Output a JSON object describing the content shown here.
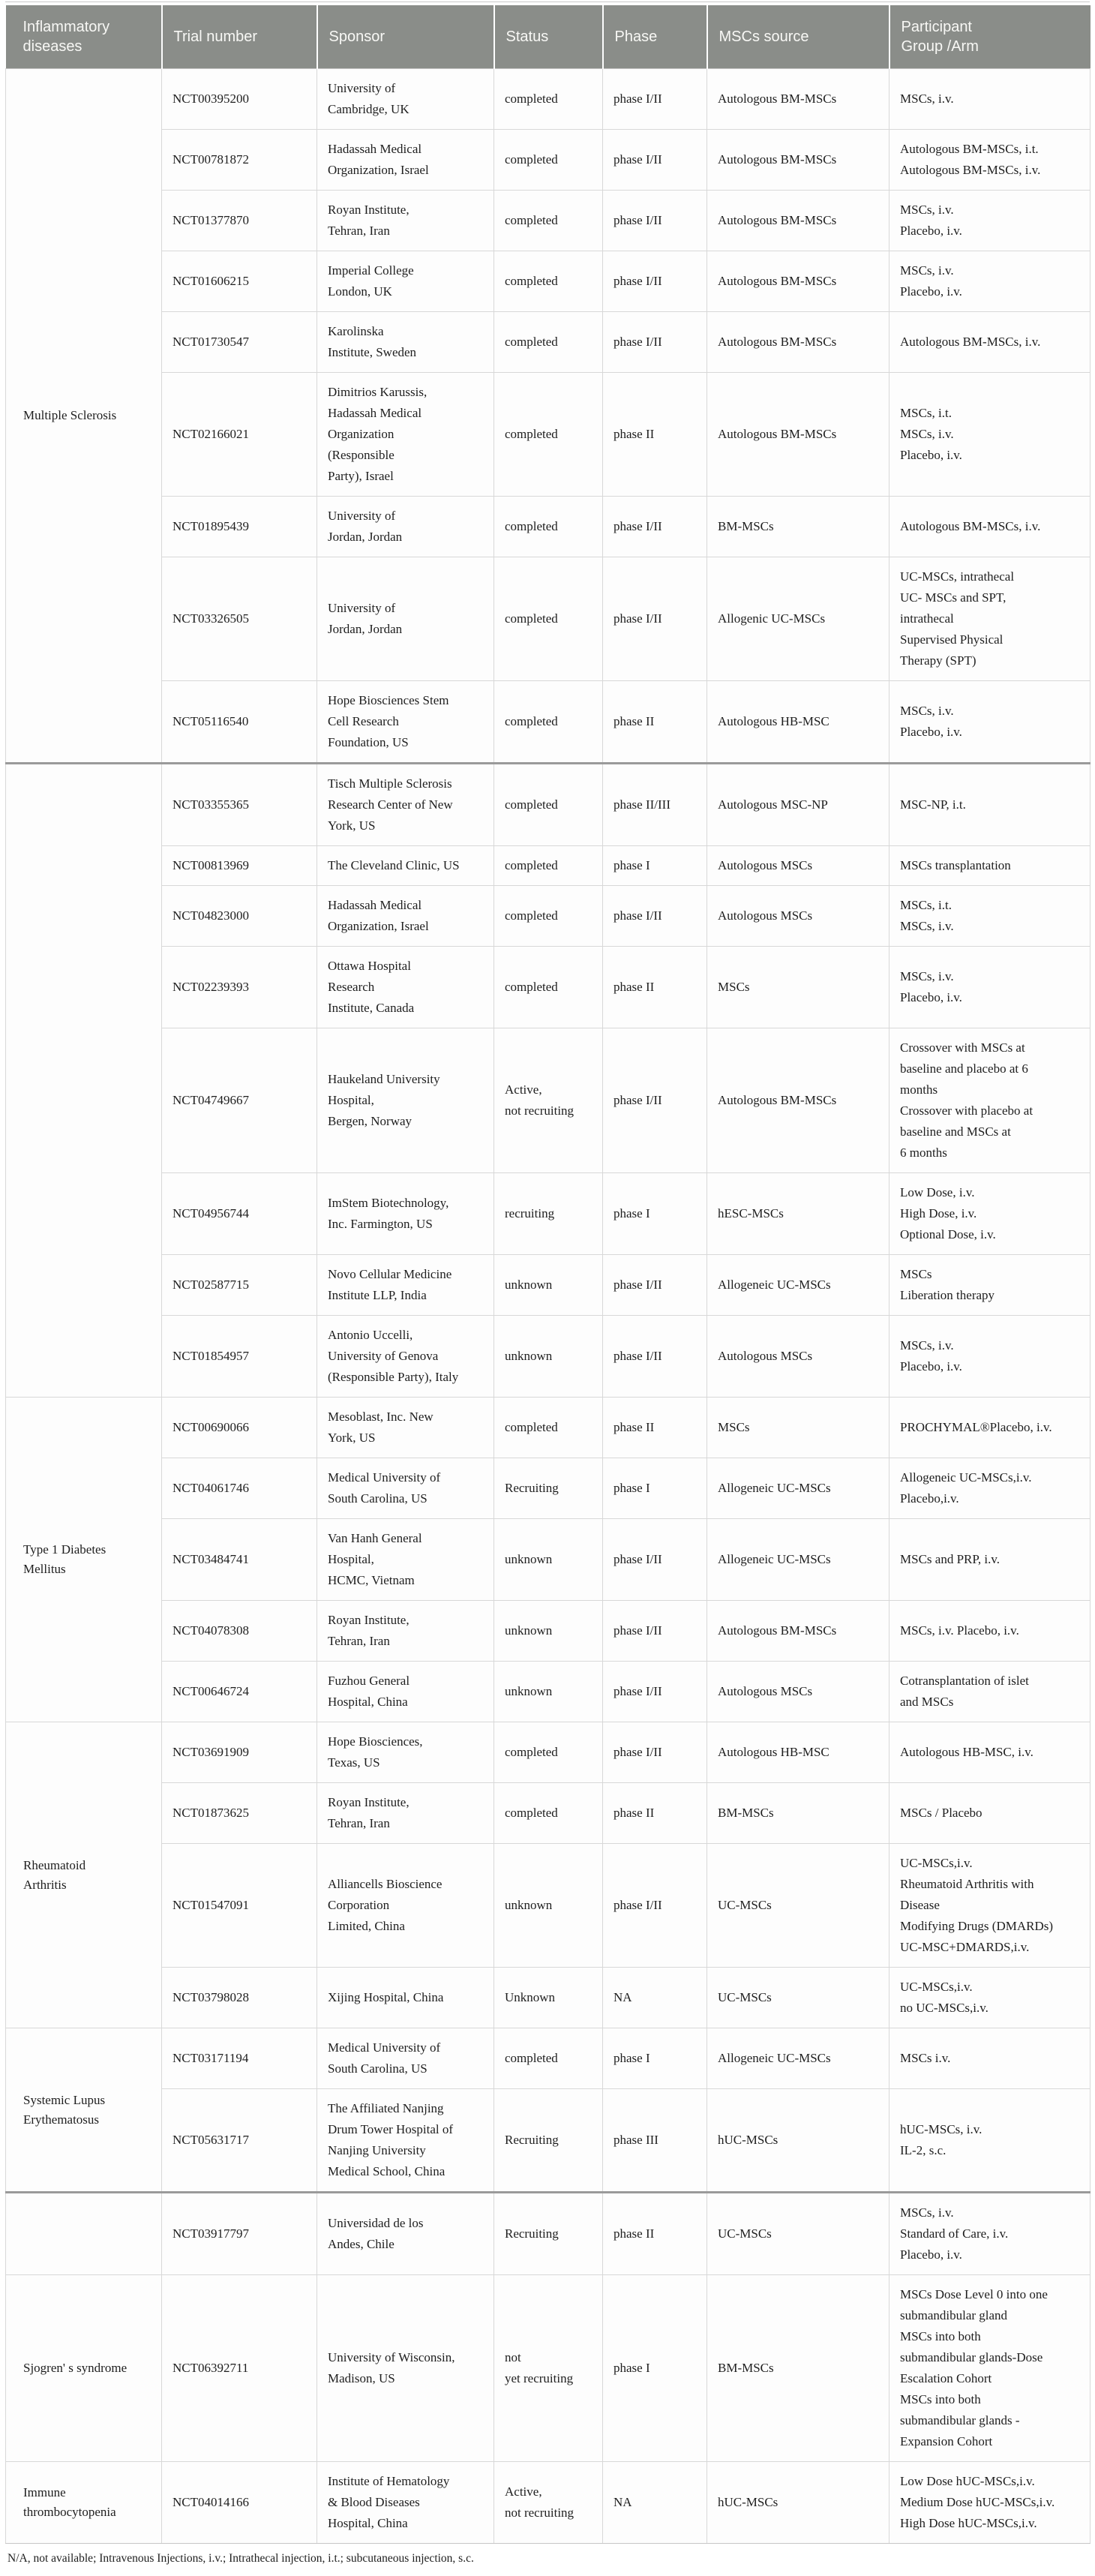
{
  "table": {
    "columns": [
      "Inflammatory\ndiseases",
      "Trial number",
      "Sponsor",
      "Status",
      "Phase",
      "MSCs source",
      "Participant\nGroup /Arm"
    ],
    "header_bg": "#8a8d89",
    "section_break_color": "#9a9a9a",
    "sections": [
      {
        "disease": "Multiple Sclerosis",
        "thick_top": false,
        "rows": [
          {
            "trial": "NCT00395200",
            "sponsor": "University of\nCambridge, UK",
            "status": "completed",
            "phase": "phase I/II",
            "source": "Autologous BM-MSCs",
            "arm": "MSCs, i.v."
          },
          {
            "trial": "NCT00781872",
            "sponsor": "Hadassah Medical\nOrganization, Israel",
            "status": "completed",
            "phase": "phase I/II",
            "source": "Autologous BM-MSCs",
            "arm": "Autologous BM-MSCs, i.t.\nAutologous BM-MSCs, i.v."
          },
          {
            "trial": "NCT01377870",
            "sponsor": "Royan Institute,\nTehran, Iran",
            "status": "completed",
            "phase": "phase I/II",
            "source": "Autologous BM-MSCs",
            "arm": "MSCs, i.v.\nPlacebo, i.v."
          },
          {
            "trial": "NCT01606215",
            "sponsor": "Imperial College\nLondon, UK",
            "status": "completed",
            "phase": "phase I/II",
            "source": "Autologous BM-MSCs",
            "arm": "MSCs, i.v.\nPlacebo, i.v."
          },
          {
            "trial": "NCT01730547",
            "sponsor": "Karolinska\nInstitute, Sweden",
            "status": "completed",
            "phase": "phase I/II",
            "source": "Autologous BM-MSCs",
            "arm": "Autologous BM-MSCs, i.v."
          },
          {
            "trial": "NCT02166021",
            "sponsor": "Dimitrios Karussis,\nHadassah Medical\nOrganization\n(Responsible\nParty), Israel",
            "status": "completed",
            "phase": "phase II",
            "source": "Autologous BM-MSCs",
            "arm": "MSCs, i.t.\nMSCs, i.v.\nPlacebo, i.v."
          },
          {
            "trial": "NCT01895439",
            "sponsor": "University of\nJordan, Jordan",
            "status": "completed",
            "phase": "phase I/II",
            "source": "BM-MSCs",
            "arm": "Autologous BM-MSCs, i.v."
          },
          {
            "trial": "NCT03326505",
            "sponsor": "University of\nJordan, Jordan",
            "status": "completed",
            "phase": "phase I/II",
            "source": "Allogenic UC-MSCs",
            "arm": "UC-MSCs, intrathecal\nUC- MSCs and SPT,\nintrathecal\nSupervised Physical\nTherapy (SPT)"
          },
          {
            "trial": "NCT05116540",
            "sponsor": "Hope Biosciences Stem\nCell Research\nFoundation, US",
            "status": "completed",
            "phase": "phase II",
            "source": "Autologous HB-MSC",
            "arm": "MSCs, i.v.\nPlacebo, i.v."
          }
        ]
      },
      {
        "disease": "",
        "thick_top": true,
        "rows": [
          {
            "trial": "NCT03355365",
            "sponsor": "Tisch Multiple Sclerosis\nResearch Center of New\nYork, US",
            "status": "completed",
            "phase": "phase II/III",
            "source": "Autologous MSC-NP",
            "arm": "MSC-NP, i.t."
          },
          {
            "trial": "NCT00813969",
            "sponsor": "The Cleveland Clinic, US",
            "status": "completed",
            "phase": "phase I",
            "source": "Autologous MSCs",
            "arm": "MSCs transplantation"
          },
          {
            "trial": "NCT04823000",
            "sponsor": "Hadassah Medical\nOrganization, Israel",
            "status": "completed",
            "phase": "phase I/II",
            "source": "Autologous MSCs",
            "arm": "MSCs, i.t.\nMSCs, i.v."
          },
          {
            "trial": "NCT02239393",
            "sponsor": "Ottawa Hospital\nResearch\nInstitute, Canada",
            "status": "completed",
            "phase": "phase II",
            "source": "MSCs",
            "arm": "MSCs, i.v.\nPlacebo, i.v."
          },
          {
            "trial": "NCT04749667",
            "sponsor": "Haukeland University\nHospital,\nBergen, Norway",
            "status": "Active,\nnot recruiting",
            "phase": "phase I/II",
            "source": "Autologous BM-MSCs",
            "arm": "Crossover with MSCs at\nbaseline and placebo at 6\nmonths\nCrossover with placebo at\nbaseline and MSCs at\n6 months"
          },
          {
            "trial": "NCT04956744",
            "sponsor": "ImStem Biotechnology,\nInc. Farmington, US",
            "status": "recruiting",
            "phase": "phase I",
            "source": "hESC-MSCs",
            "arm": "Low Dose, i.v.\nHigh Dose, i.v.\nOptional Dose, i.v."
          },
          {
            "trial": "NCT02587715",
            "sponsor": "Novo Cellular Medicine\nInstitute LLP, India",
            "status": "unknown",
            "phase": "phase I/II",
            "source": "Allogeneic UC-MSCs",
            "arm": "MSCs\nLiberation therapy"
          },
          {
            "trial": "NCT01854957",
            "sponsor": "Antonio Uccelli,\nUniversity of Genova\n(Responsible Party), Italy",
            "status": "unknown",
            "phase": "phase I/II",
            "source": "Autologous MSCs",
            "arm": "MSCs, i.v.\nPlacebo, i.v."
          }
        ]
      },
      {
        "disease": "Type 1 Diabetes\nMellitus",
        "thick_top": false,
        "rows": [
          {
            "trial": "NCT00690066",
            "sponsor": "Mesoblast, Inc. New\nYork, US",
            "status": "completed",
            "phase": "phase II",
            "source": "MSCs",
            "arm": "PROCHYMAL®Placebo, i.v."
          },
          {
            "trial": "NCT04061746",
            "sponsor": "Medical University of\nSouth Carolina, US",
            "status": "Recruiting",
            "phase": "phase I",
            "source": "Allogeneic UC-MSCs",
            "arm": "Allogeneic UC-MSCs,i.v.\nPlacebo,i.v."
          },
          {
            "trial": "NCT03484741",
            "sponsor": "Van Hanh General\nHospital,\nHCMC, Vietnam",
            "status": "unknown",
            "phase": "phase I/II",
            "source": "Allogeneic UC-MSCs",
            "arm": "MSCs and PRP, i.v."
          },
          {
            "trial": "NCT04078308",
            "sponsor": "Royan Institute,\nTehran, Iran",
            "status": "unknown",
            "phase": "phase I/II",
            "source": "Autologous BM-MSCs",
            "arm": "MSCs, i.v. Placebo, i.v."
          },
          {
            "trial": "NCT00646724",
            "sponsor": "Fuzhou General\nHospital, China",
            "status": "unknown",
            "phase": "phase I/II",
            "source": "Autologous MSCs",
            "arm": "Cotransplantation of islet\nand MSCs"
          }
        ]
      },
      {
        "disease": "Rheumatoid\nArthritis",
        "thick_top": false,
        "rows": [
          {
            "trial": "NCT03691909",
            "sponsor": "Hope Biosciences,\nTexas, US",
            "status": "completed",
            "phase": "phase I/II",
            "source": "Autologous HB-MSC",
            "arm": "Autologous HB-MSC, i.v."
          },
          {
            "trial": "NCT01873625",
            "sponsor": "Royan Institute,\nTehran, Iran",
            "status": "completed",
            "phase": "phase II",
            "source": "BM-MSCs",
            "arm": "MSCs / Placebo"
          },
          {
            "trial": "NCT01547091",
            "sponsor": "Alliancells Bioscience\nCorporation\nLimited, China",
            "status": "unknown",
            "phase": "phase I/II",
            "source": "UC-MSCs",
            "arm": "UC-MSCs,i.v.\nRheumatoid Arthritis with\nDisease\nModifying Drugs (DMARDs)\nUC-MSC+DMARDS,i.v."
          },
          {
            "trial": "NCT03798028",
            "sponsor": "Xijing Hospital, China",
            "status": "Unknown",
            "phase": "NA",
            "source": "UC-MSCs",
            "arm": "UC-MSCs,i.v.\nno UC-MSCs,i.v."
          }
        ]
      },
      {
        "disease": "Systemic Lupus\nErythematosus",
        "thick_top": false,
        "rows": [
          {
            "trial": "NCT03171194",
            "sponsor": "Medical University of\nSouth Carolina, US",
            "status": "completed",
            "phase": "phase I",
            "source": "Allogeneic UC-MSCs",
            "arm": "MSCs i.v."
          },
          {
            "trial": "NCT05631717",
            "sponsor": "The Affiliated Nanjing\nDrum Tower Hospital of\nNanjing University\nMedical School, China",
            "status": "Recruiting",
            "phase": "phase III",
            "source": "hUC-MSCs",
            "arm": "hUC-MSCs, i.v.\nIL-2, s.c."
          }
        ]
      },
      {
        "disease": "",
        "thick_top": true,
        "rows": [
          {
            "trial": "NCT03917797",
            "sponsor": "Universidad de los\nAndes, Chile",
            "status": "Recruiting",
            "phase": "phase II",
            "source": "UC-MSCs",
            "arm": "MSCs, i.v.\nStandard of Care, i.v.\nPlacebo, i.v."
          }
        ]
      },
      {
        "disease": "Sjogren' s syndrome",
        "thick_top": false,
        "rows": [
          {
            "trial": "NCT06392711",
            "sponsor": "University of Wisconsin,\nMadison, US",
            "status": "not\nyet recruiting",
            "phase": "phase I",
            "source": "BM-MSCs",
            "arm": "MSCs Dose Level 0 into one\nsubmandibular gland\nMSCs into both\nsubmandibular glands-Dose\nEscalation Cohort\nMSCs into both\nsubmandibular glands -\nExpansion Cohort"
          }
        ]
      },
      {
        "disease": "Immune\nthrombocytopenia",
        "thick_top": false,
        "rows": [
          {
            "trial": "NCT04014166",
            "sponsor": "Institute of Hematology\n& Blood Diseases\nHospital, China",
            "status": "Active,\nnot recruiting",
            "phase": "NA",
            "source": "hUC-MSCs",
            "arm": "Low Dose hUC-MSCs,i.v.\nMedium Dose hUC-MSCs,i.v.\nHigh Dose hUC-MSCs,i.v."
          }
        ]
      }
    ],
    "footnote": "N/A, not available; Intravenous Injections, i.v.; Intrathecal injection, i.t.; subcutaneous injection, s.c."
  }
}
